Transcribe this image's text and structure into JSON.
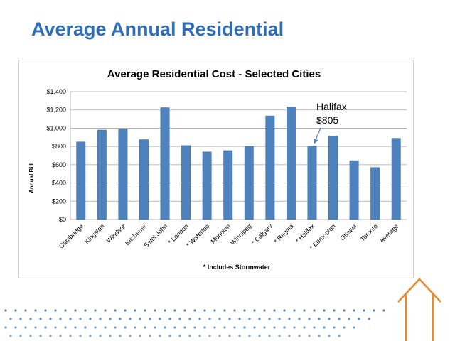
{
  "slide": {
    "title": "Average Annual Residential"
  },
  "colors": {
    "title": "#2f6fb7",
    "bar": "#4f81bd",
    "bar_edge": "#3c6fa8",
    "grid": "#a6a6a6",
    "dots": "#2f6fb7",
    "house": "#e8892f"
  },
  "icons": {
    "house": "house-outline-icon",
    "dots": "dot-pattern"
  },
  "chart_data": {
    "type": "bar",
    "title": "Average Residential Cost - Selected Cities",
    "ylabel": "Annual Bill",
    "xlabel": "",
    "ylim": [
      0,
      1400
    ],
    "yticks": [
      0,
      200,
      400,
      600,
      800,
      1000,
      1200,
      1400
    ],
    "ytick_labels": [
      "$0",
      "$200",
      "$400",
      "$600",
      "$800",
      "$1,000",
      "$1,200",
      "$1,400"
    ],
    "grid": true,
    "categories": [
      "Cambridge",
      "Kingston",
      "Windsor",
      "Kitchener",
      "Saint John",
      "* London",
      "* Waterloo",
      "Moncton",
      "Winnipeg",
      "* Calgary",
      "* Regina",
      "* Halifax",
      "* Edmonton",
      "Ottawa",
      "Toronto",
      "Average"
    ],
    "values": [
      850,
      980,
      990,
      875,
      1225,
      810,
      740,
      755,
      800,
      1135,
      1235,
      805,
      915,
      645,
      570,
      890
    ],
    "footnote": "* Includes Stormwater",
    "annotation": {
      "line1": "Halifax",
      "line2": "$805",
      "target_category": "* Halifax"
    }
  }
}
